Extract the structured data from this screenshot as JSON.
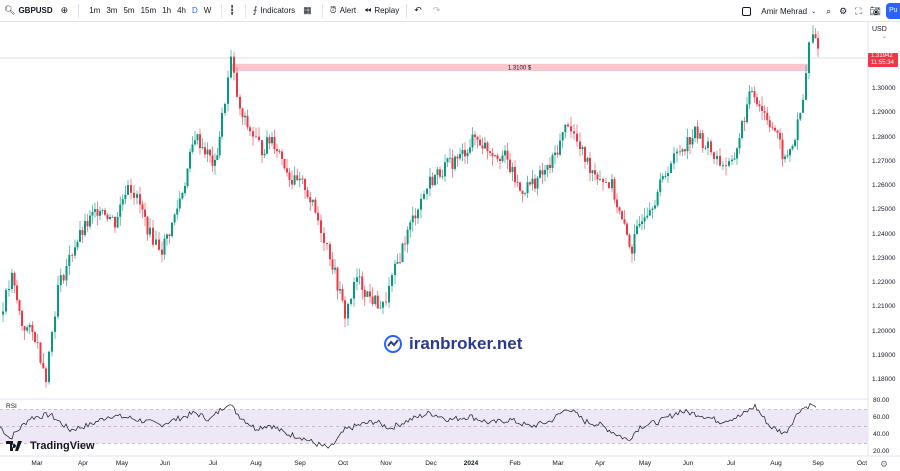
{
  "toolbar": {
    "symbol": "GBPUSD",
    "timeframes": [
      "1m",
      "3m",
      "5m",
      "15m",
      "1h",
      "4h",
      "D",
      "W"
    ],
    "active_timeframe": "D",
    "indicators_label": "Indicators",
    "alert_label": "Alert",
    "replay_label": "Replay",
    "user_name": "Amir Mehrad",
    "publish_label": "Pu"
  },
  "price_axis": {
    "currency": "USD",
    "labels": [
      "1.31000",
      "1.30000",
      "1.29000",
      "1.28000",
      "1.27000",
      "1.26000",
      "1.25000",
      "1.24000",
      "1.23000",
      "1.22000",
      "1.21000",
      "1.20000",
      "1.19000",
      "1.18000"
    ],
    "current_price": "1.31942",
    "countdown": "11:55:34"
  },
  "rsi_axis": {
    "labels": [
      "80.00",
      "60.00",
      "40.00",
      "20.00"
    ]
  },
  "time_axis": {
    "labels": [
      "Mar",
      "Apr",
      "May",
      "Jun",
      "Jul",
      "Aug",
      "Sep",
      "Oct",
      "Nov",
      "Dec",
      "2024",
      "Feb",
      "Mar",
      "Apr",
      "May",
      "Jun",
      "Jul",
      "Aug",
      "Sep",
      "Oct"
    ]
  },
  "watermark": "iranbroker.net",
  "logo_text": "TradingView",
  "colors": {
    "up": "#089981",
    "down": "#f23645",
    "zone": "#f8c6cc",
    "rsi_band": "#ede7f6",
    "rsi_line": "#131722",
    "accent": "#2962ff"
  },
  "chart_data": {
    "type": "candlestick",
    "symbol": "GBPUSD",
    "interval": "1D",
    "x_range": [
      "2023-02",
      "2024-09"
    ],
    "ylim": [
      1.175,
      1.325
    ],
    "annotation": {
      "label": "1.3100 $",
      "from_price": 1.3075,
      "to_price": 1.3105,
      "from_date": "2023-07",
      "to_date": "2024-08"
    },
    "close_path": [
      [
        "2023-02",
        1.207
      ],
      [
        "2023-03",
        1.182
      ],
      [
        "2023-04",
        1.243
      ],
      [
        "2023-05",
        1.262
      ],
      [
        "2023-05",
        1.236
      ],
      [
        "2023-06",
        1.233
      ],
      [
        "2023-06",
        1.281
      ],
      [
        "2023-06",
        1.268
      ],
      [
        "2023-07",
        1.312
      ],
      [
        "2023-07",
        1.288
      ],
      [
        "2023-08",
        1.282
      ],
      [
        "2023-08",
        1.266
      ],
      [
        "2023-08",
        1.274
      ],
      [
        "2023-09",
        1.258
      ],
      [
        "2023-09",
        1.245
      ],
      [
        "2023-10",
        1.223
      ],
      [
        "2023-10",
        1.205
      ],
      [
        "2023-10",
        1.215
      ],
      [
        "2023-11",
        1.209
      ],
      [
        "2023-11",
        1.222
      ],
      [
        "2023-11",
        1.252
      ],
      [
        "2023-12",
        1.262
      ],
      [
        "2023-12",
        1.275
      ],
      [
        "2023-12",
        1.268
      ],
      [
        "2024-01",
        1.273
      ],
      [
        "2024-01",
        1.268
      ],
      [
        "2024-02",
        1.258
      ],
      [
        "2024-02",
        1.265
      ],
      [
        "2024-03",
        1.285
      ],
      [
        "2024-03",
        1.27
      ],
      [
        "2024-03",
        1.262
      ],
      [
        "2024-04",
        1.238
      ],
      [
        "2024-04",
        1.233
      ],
      [
        "2024-05",
        1.252
      ],
      [
        "2024-05",
        1.272
      ],
      [
        "2024-06",
        1.278
      ],
      [
        "2024-06",
        1.268
      ],
      [
        "2024-07",
        1.285
      ],
      [
        "2024-07",
        1.298
      ],
      [
        "2024-07",
        1.282
      ],
      [
        "2024-08",
        1.27
      ],
      [
        "2024-08",
        1.285
      ],
      [
        "2024-08",
        1.318
      ],
      [
        "2024-09",
        1.319
      ]
    ],
    "rsi": {
      "levels": [
        70,
        50,
        30
      ],
      "ylim": [
        20,
        80
      ],
      "path": [
        [
          0,
          50
        ],
        [
          10,
          36
        ],
        [
          30,
          60
        ],
        [
          50,
          64
        ],
        [
          70,
          46
        ],
        [
          90,
          52
        ],
        [
          110,
          63
        ],
        [
          130,
          60
        ],
        [
          160,
          52
        ],
        [
          180,
          60
        ],
        [
          195,
          66
        ],
        [
          210,
          58
        ],
        [
          228,
          78
        ],
        [
          240,
          62
        ],
        [
          255,
          48
        ],
        [
          270,
          52
        ],
        [
          285,
          42
        ],
        [
          300,
          38
        ],
        [
          315,
          30
        ],
        [
          330,
          24
        ],
        [
          345,
          46
        ],
        [
          360,
          52
        ],
        [
          375,
          56
        ],
        [
          390,
          48
        ],
        [
          410,
          58
        ],
        [
          430,
          66
        ],
        [
          450,
          58
        ],
        [
          470,
          62
        ],
        [
          490,
          54
        ],
        [
          510,
          58
        ],
        [
          530,
          50
        ],
        [
          550,
          56
        ],
        [
          568,
          72
        ],
        [
          585,
          56
        ],
        [
          600,
          52
        ],
        [
          615,
          42
        ],
        [
          628,
          34
        ],
        [
          640,
          50
        ],
        [
          660,
          56
        ],
        [
          680,
          68
        ],
        [
          700,
          64
        ],
        [
          720,
          56
        ],
        [
          740,
          62
        ],
        [
          755,
          74
        ],
        [
          770,
          50
        ],
        [
          785,
          42
        ],
        [
          800,
          70
        ],
        [
          812,
          76
        ],
        [
          818,
          68
        ]
      ]
    }
  }
}
